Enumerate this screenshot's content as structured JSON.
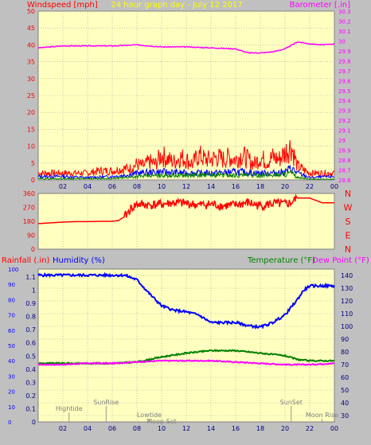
{
  "colors": {
    "background": "#c0c0c0",
    "plot_bg": "#ffffc0",
    "gridline": "#a0a0a0",
    "wind_axis": "#ff0000",
    "baro_axis": "#ff00ff",
    "title": "#ffff00",
    "gust": "#ff0000",
    "avg_blue": "#0000ff",
    "avg_green": "#008000",
    "pressure": "#ff00ff",
    "direction": "#ff0000",
    "rain_label": "#ff0000",
    "humidity_label": "#0000ff",
    "temp_label": "#008000",
    "dew_label": "#ff00ff",
    "humidity": "#0000ff",
    "temperature": "#008000",
    "dewpoint": "#ff00ff",
    "tick_text": "#000080",
    "event_text": "#808080"
  },
  "chart_data": [
    {
      "type": "line",
      "title": "24 hour graph day - July 12 2017",
      "ylabel_left": "Windspeed [mph]",
      "ylabel_right": "Barometer [.in]",
      "x_ticks": [
        "02",
        "04",
        "06",
        "08",
        "10",
        "12",
        "14",
        "16",
        "18",
        "20",
        "22",
        "00"
      ],
      "y_left_ticks": [
        "0",
        "5",
        "10",
        "15",
        "20",
        "25",
        "30",
        "35",
        "40",
        "45",
        "50"
      ],
      "y_right_ticks": [
        "28.6",
        "28.7",
        "28.8",
        "28.9",
        "29",
        "29.1",
        "29.2",
        "29.3",
        "29.4",
        "29.5",
        "29.6",
        "29.7",
        "29.8",
        "29.9",
        "30",
        "30.1",
        "30.2",
        "30.3"
      ],
      "ylim_left": [
        0,
        50
      ],
      "ylim_right": [
        28.6,
        30.3
      ],
      "series": [
        {
          "axis": "right",
          "x": [
            0,
            2,
            4,
            6,
            8,
            10,
            12,
            14,
            16,
            17,
            18,
            19,
            20,
            21,
            22,
            23,
            24
          ],
          "values": [
            29.93,
            29.95,
            29.95,
            29.95,
            29.96,
            29.94,
            29.94,
            29.93,
            29.92,
            29.88,
            29.88,
            29.89,
            29.92,
            29.99,
            29.97,
            29.96,
            29.97
          ]
        },
        {
          "axis": "left",
          "x": [
            0,
            1,
            2,
            3,
            4,
            5,
            6,
            7,
            7.5,
            8,
            8.5,
            9,
            9.5,
            10,
            10.5,
            11,
            11.5,
            12,
            12.5,
            13,
            13.5,
            14,
            14.5,
            15,
            15.5,
            16,
            16.5,
            17,
            17.5,
            18,
            18.5,
            19,
            19.5,
            20,
            20.5,
            21,
            22,
            23,
            24
          ],
          "values": [
            3,
            3,
            3,
            3,
            3,
            4,
            4,
            5,
            5,
            7,
            6,
            8,
            7,
            11,
            9,
            8,
            10,
            9,
            7,
            11,
            9,
            9,
            10,
            9,
            10,
            9,
            11,
            9,
            7,
            10,
            8,
            10,
            9,
            12,
            15,
            6,
            3,
            3,
            3
          ]
        },
        {
          "axis": "left",
          "x": [
            0,
            2,
            4,
            6,
            7,
            8,
            10,
            12,
            14,
            16,
            18,
            19,
            20,
            20.5,
            21,
            22,
            24
          ],
          "values": [
            1.5,
            1.5,
            1,
            1.5,
            2,
            3,
            3.5,
            3,
            3,
            3.5,
            3,
            3,
            3.5,
            5,
            3,
            1,
            1.5
          ]
        },
        {
          "axis": "left",
          "x": [
            0,
            6,
            8,
            10,
            12,
            14,
            16,
            18,
            20,
            20.5,
            21,
            22,
            24
          ],
          "values": [
            0.5,
            0.5,
            1.5,
            2,
            2,
            2.2,
            2,
            2,
            2.5,
            3,
            1,
            0.3,
            0.3
          ]
        }
      ]
    },
    {
      "type": "line",
      "y_ticks": [
        "360",
        "270",
        "180",
        "90",
        "0"
      ],
      "ylim": [
        0,
        360
      ],
      "compass_labels": [
        "N",
        "W",
        "S",
        "E",
        "N"
      ],
      "series": [
        {
          "x": [
            0,
            1,
            2,
            3,
            4,
            5,
            6,
            6.5,
            7,
            7.5,
            8,
            9,
            10,
            11,
            12,
            13,
            14,
            15,
            16,
            17,
            18,
            19,
            20,
            20.5,
            21,
            22,
            23,
            24
          ],
          "values": [
            165,
            170,
            175,
            178,
            178,
            180,
            180,
            185,
            210,
            260,
            290,
            285,
            290,
            300,
            295,
            285,
            290,
            280,
            285,
            300,
            280,
            295,
            290,
            300,
            330,
            330,
            300,
            300
          ]
        }
      ]
    },
    {
      "type": "line",
      "ylabel_left_rain": "Rainfall (.in)",
      "ylabel_left_humidity": "Humidity (%)",
      "ylabel_right_temp": "Temperature (°F)",
      "ylabel_right_dew": "Dew Point (°F)",
      "y_humidity_ticks": [
        "0",
        "10",
        "20",
        "30",
        "40",
        "50",
        "60",
        "70",
        "80",
        "90",
        "100"
      ],
      "y_rain_ticks": [
        "0",
        "0.1",
        "0.2",
        "0.3",
        "0.4",
        "0.5",
        "0.6",
        "0.7",
        "0.8",
        "0.9",
        "1",
        "1.1"
      ],
      "y_temp_ticks": [
        "30",
        "40",
        "50",
        "60",
        "70",
        "80",
        "90",
        "100",
        "110",
        "120",
        "130",
        "140"
      ],
      "ylim_humidity": [
        0,
        100
      ],
      "ylim_temp": [
        25,
        145
      ],
      "series": [
        {
          "axis": "humidity",
          "x": [
            0,
            2,
            4,
            6,
            7,
            8,
            9,
            10,
            11,
            12,
            13,
            14,
            15,
            16,
            17,
            18,
            19,
            20,
            21,
            21.5,
            22,
            23,
            24
          ],
          "values": [
            96,
            96,
            96,
            96,
            96,
            93,
            84,
            76,
            73,
            72,
            70,
            65,
            65,
            65,
            63,
            62,
            65,
            70,
            80,
            86,
            89,
            89,
            89
          ]
        },
        {
          "axis": "temp",
          "x": [
            0,
            2,
            4,
            6,
            8,
            10,
            12,
            13,
            14,
            15,
            16,
            17,
            18,
            19,
            20,
            21,
            22,
            24
          ],
          "values": [
            71,
            71,
            71,
            71,
            72,
            76,
            79,
            80,
            81,
            81,
            81,
            80,
            79,
            78,
            77,
            74,
            73,
            73
          ]
        },
        {
          "axis": "temp",
          "x": [
            0,
            2,
            4,
            6,
            8,
            10,
            12,
            14,
            16,
            18,
            20,
            22,
            24
          ],
          "values": [
            70,
            70,
            71,
            71,
            72,
            73,
            73,
            73,
            72,
            71,
            70,
            70,
            71
          ]
        }
      ],
      "x_ticks": [
        "02",
        "04",
        "06",
        "08",
        "10",
        "12",
        "14",
        "16",
        "18",
        "20",
        "22",
        "00"
      ],
      "events": [
        {
          "label": "Hightide",
          "x": 2.5,
          "row": 1
        },
        {
          "label": "SunRise",
          "x": 5.5,
          "row": 0
        },
        {
          "label": "Lowtide",
          "x": 9.0,
          "row": 2
        },
        {
          "label": "Moon Set",
          "x": 10.0,
          "row": 3
        },
        {
          "label": "SunSet",
          "x": 20.5,
          "row": 0
        },
        {
          "label": "Moon Rise",
          "x": 23.0,
          "row": 2
        }
      ]
    }
  ]
}
